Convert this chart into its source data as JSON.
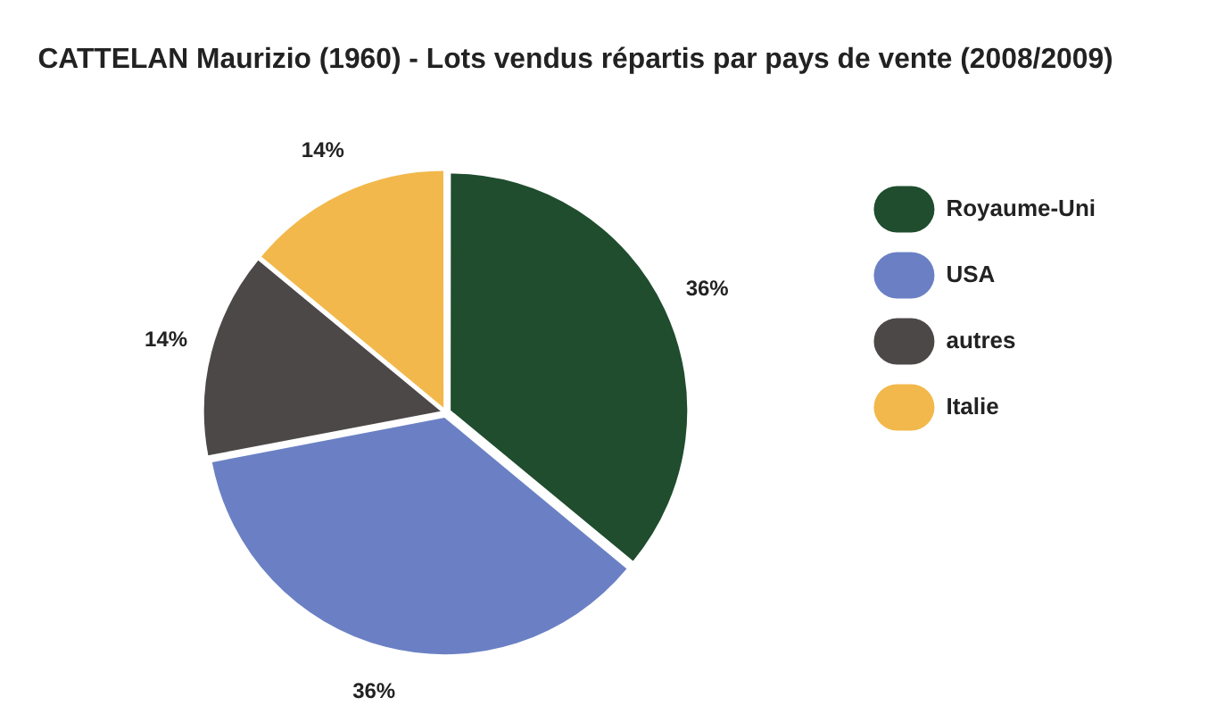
{
  "chart_data": {
    "type": "pie",
    "title": "CATTELAN Maurizio (1960) - Lots vendus répartis par pays de vente (2008/2009)",
    "categories": [
      "Royaume-Uni",
      "USA",
      "autres",
      "Italie"
    ],
    "values": [
      36,
      36,
      14,
      14
    ],
    "colors": [
      "#1f4d2e",
      "#6b80c4",
      "#4d4848",
      "#f2b84b"
    ],
    "value_labels": [
      "36%",
      "36%",
      "14%",
      "14%"
    ],
    "legend": "right"
  }
}
